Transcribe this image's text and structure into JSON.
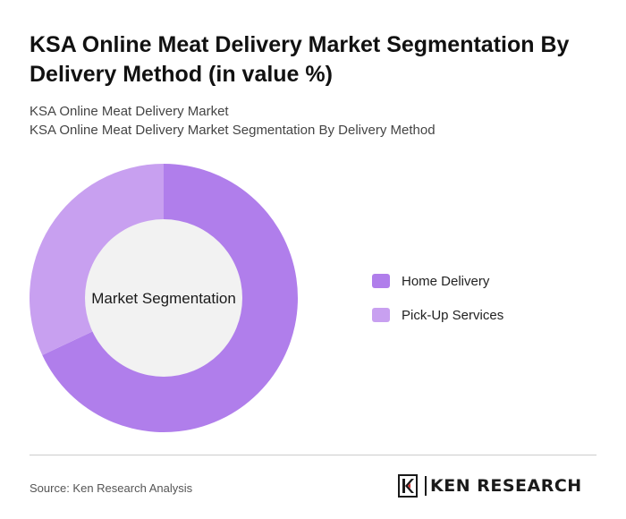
{
  "title": "KSA Online Meat Delivery Market Segmentation By Delivery Method (in value %)",
  "subtitle_lines": [
    "KSA Online Meat Delivery Market",
    "KSA Online Meat Delivery Market Segmentation By Delivery Method"
  ],
  "chart_data": {
    "type": "pie",
    "variant": "donut",
    "center_label": "Market Segmentation",
    "categories": [
      "Home Delivery",
      "Pick-Up Services"
    ],
    "values": [
      68,
      32
    ],
    "colors": [
      "#b07eeb",
      "#c8a0f0"
    ],
    "center_fill": "#f2f2f2",
    "legend_position": "right"
  },
  "legend": {
    "items": [
      {
        "label": "Home Delivery",
        "color": "#b07eeb"
      },
      {
        "label": "Pick-Up Services",
        "color": "#c8a0f0"
      }
    ]
  },
  "footer": {
    "source": "Source: Ken Research Analysis",
    "logo_text": "KEN RESEARCH",
    "logo_icon": "ken-research-logo-icon"
  }
}
